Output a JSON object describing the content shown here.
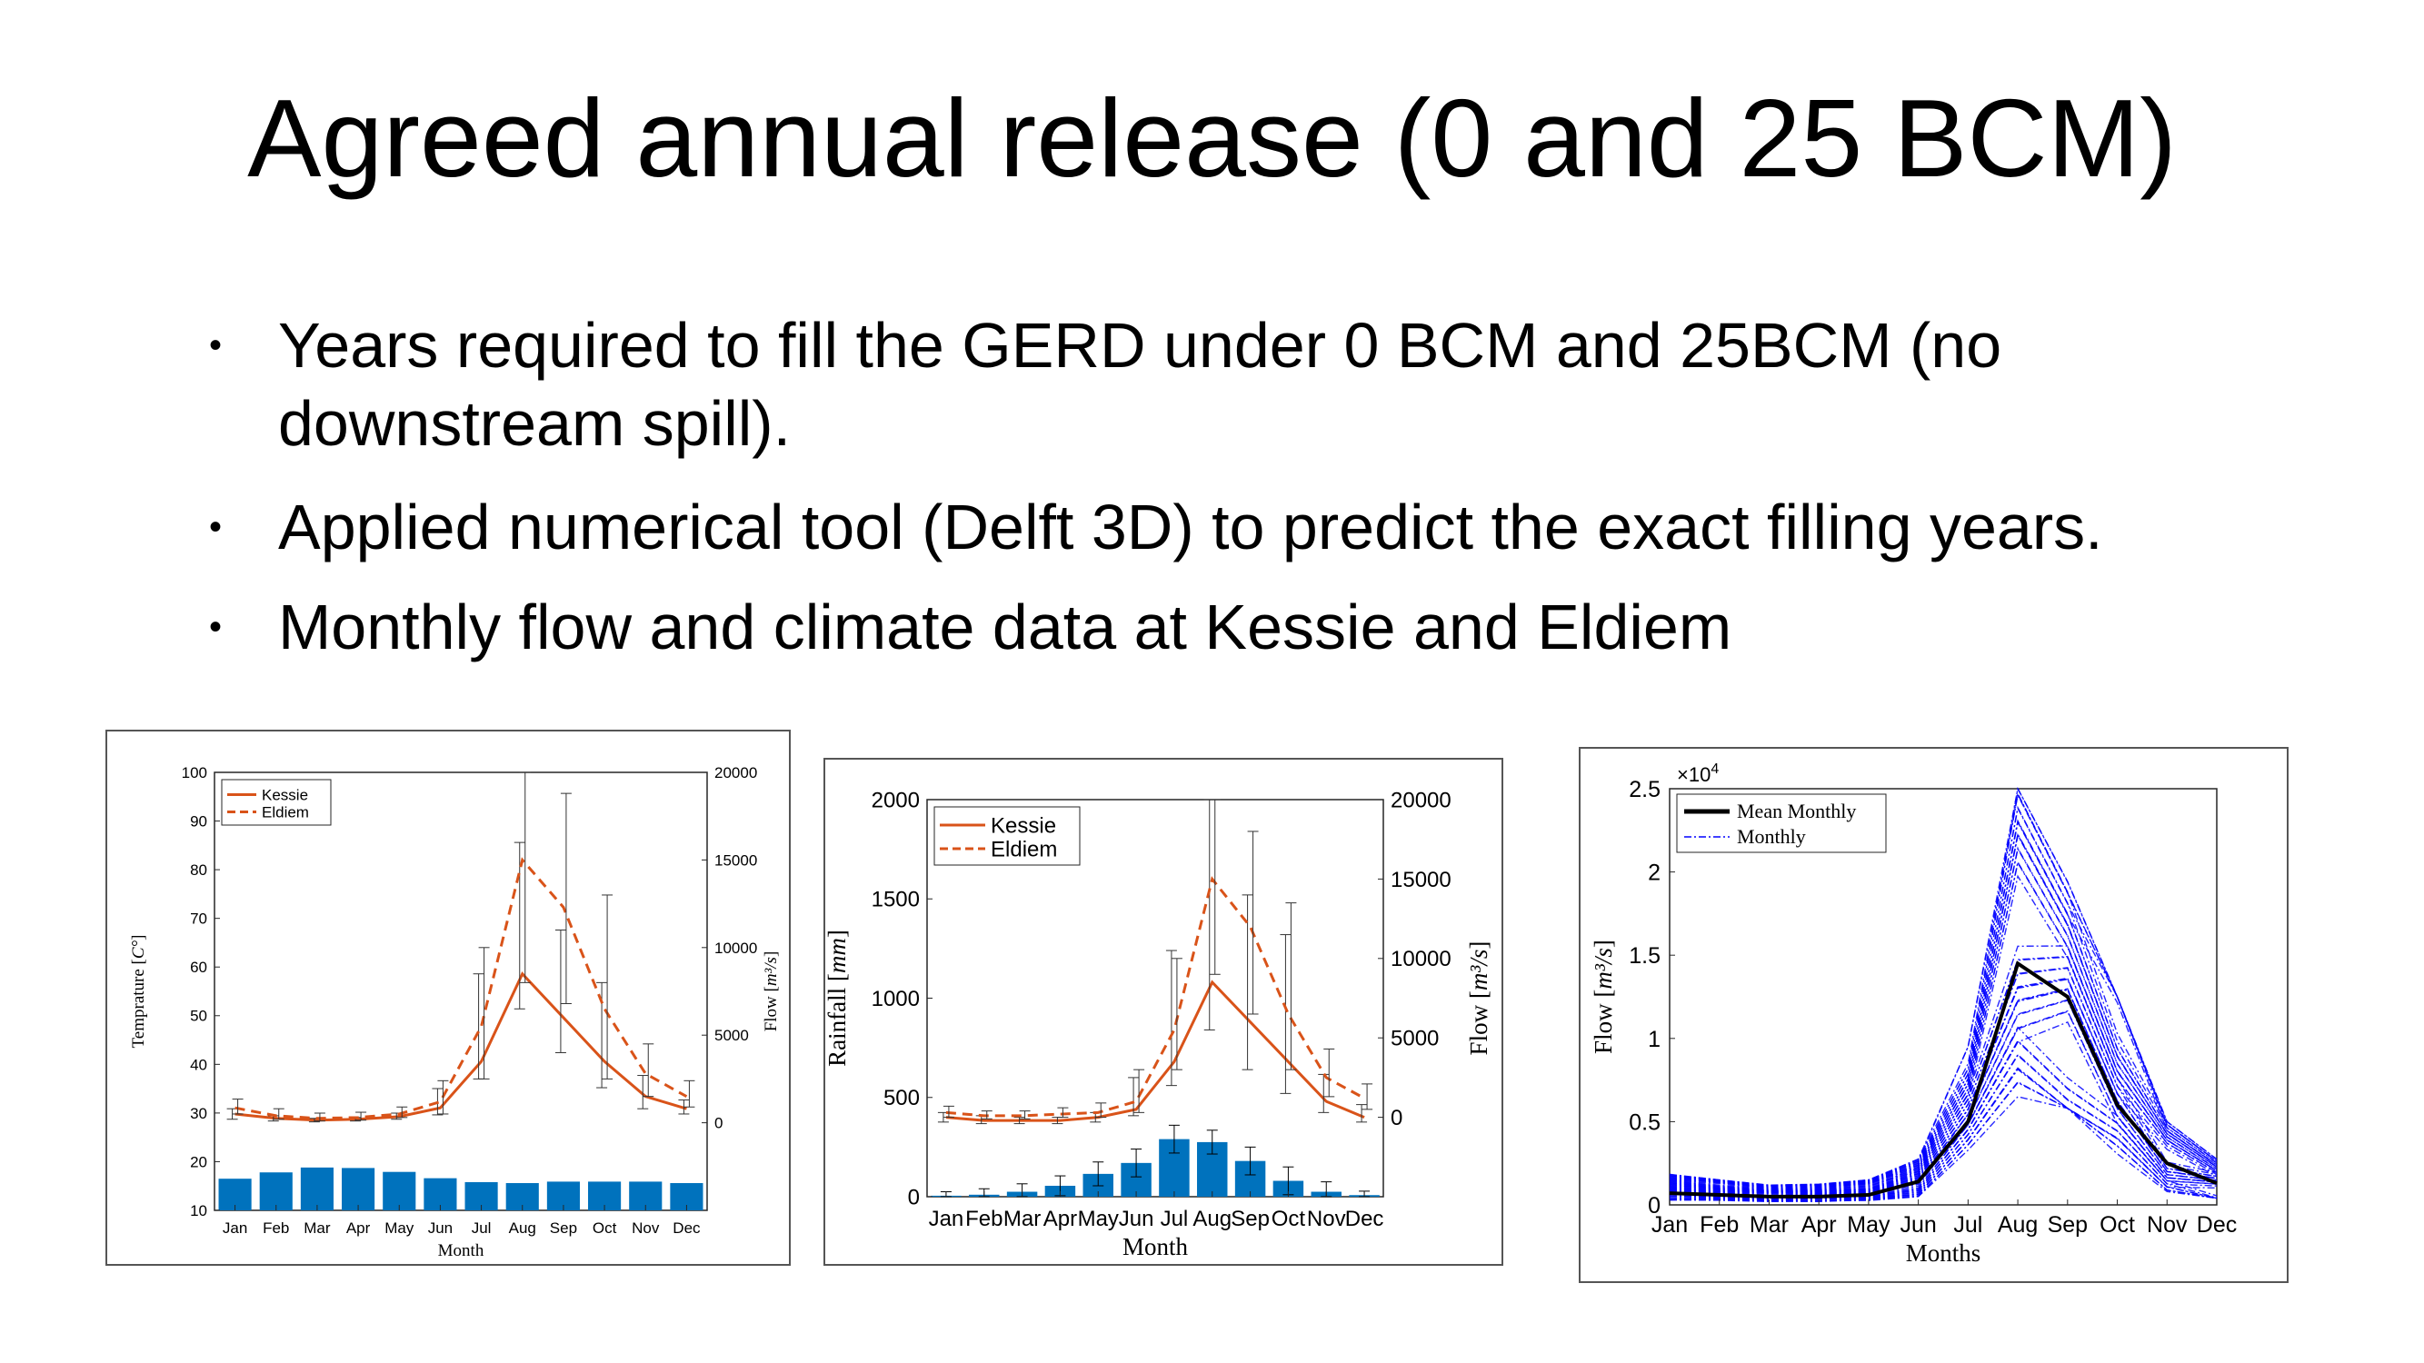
{
  "slide": {
    "title": "Agreed annual release (0 and 25 BCM)",
    "bullets": [
      {
        "lines": [
          "Years required to fill the GERD under 0 BCM and 25BCM (no",
          "downstream spill)."
        ]
      },
      {
        "lines": [
          "Applied numerical tool (Delft 3D) to predict the exact filling years."
        ]
      },
      {
        "lines": [
          "Monthly flow and climate data at Kessie and Eldiem"
        ]
      }
    ],
    "bullet_marker": "•"
  },
  "colors": {
    "kessie": "#D95319",
    "eldiem": "#D95319",
    "bars": "#0072BD",
    "monthly": "#0000FF",
    "mean": "#000000"
  },
  "chart_data": [
    {
      "type": "bar",
      "categories": [
        "Jan",
        "Feb",
        "Mar",
        "Apr",
        "May",
        "Jun",
        "Jul",
        "Aug",
        "Sep",
        "Oct",
        "Nov",
        "Dec"
      ],
      "xlabel": "Month",
      "ylabel": "Temprature [C°]",
      "ylim": [
        10,
        100
      ],
      "yticks": [
        10,
        20,
        30,
        40,
        50,
        60,
        70,
        80,
        90,
        100
      ],
      "y2label": "Flow [m³/s]",
      "y2lim": [
        -5000,
        20000
      ],
      "y2ticks": [
        0,
        5000,
        10000,
        15000,
        20000
      ],
      "bars": {
        "axis": "left",
        "values": [
          16.5,
          17.8,
          18.8,
          18.7,
          17.9,
          16.6,
          15.8,
          15.6,
          15.9,
          15.9,
          15.9,
          15.6
        ]
      },
      "series": [
        {
          "name": "Kessie",
          "axis": "right",
          "style": "solid",
          "values": [
            500,
            250,
            150,
            200,
            350,
            850,
            3500,
            8500,
            6000,
            3500,
            1500,
            800
          ],
          "err_lo": [
            300,
            150,
            100,
            100,
            150,
            400,
            1000,
            2000,
            2000,
            1500,
            700,
            300
          ],
          "err_hi": [
            300,
            150,
            100,
            100,
            200,
            1100,
            5000,
            7500,
            5000,
            4500,
            1200,
            500
          ]
        },
        {
          "name": "Eldiem",
          "axis": "right",
          "style": "dashed",
          "values": [
            850,
            400,
            250,
            300,
            500,
            1200,
            5500,
            15000,
            12300,
            6500,
            2800,
            1500
          ],
          "err_lo": [
            350,
            200,
            150,
            150,
            200,
            700,
            3000,
            7000,
            5500,
            4000,
            1300,
            600
          ],
          "err_hi": [
            500,
            400,
            300,
            300,
            400,
            1200,
            4500,
            5000,
            6500,
            6500,
            1700,
            900
          ]
        }
      ],
      "legend": {
        "position": "top-left",
        "entries": [
          "Kessie",
          "Eldiem"
        ]
      }
    },
    {
      "type": "bar",
      "categories": [
        "Jan",
        "Feb",
        "Mar",
        "Apr",
        "May",
        "Jun",
        "Jul",
        "Aug",
        "Sep",
        "Oct",
        "Nov",
        "Dec"
      ],
      "xlabel": "Month",
      "ylabel": "Rainfall [mm]",
      "ylim": [
        0,
        2000
      ],
      "yticks": [
        0,
        500,
        1000,
        1500,
        2000
      ],
      "y2label": "Flow [m³/s]",
      "y2lim": [
        -5000,
        20000
      ],
      "y2ticks": [
        0,
        5000,
        10000,
        15000,
        20000
      ],
      "bars": {
        "axis": "left",
        "values": [
          5,
          10,
          25,
          55,
          115,
          170,
          290,
          275,
          180,
          80,
          25,
          8
        ],
        "err": [
          20,
          30,
          40,
          50,
          60,
          70,
          70,
          60,
          70,
          70,
          50,
          20
        ]
      },
      "series": [
        {
          "name": "Kessie",
          "axis": "right",
          "style": "solid",
          "values": [
            0,
            -200,
            -200,
            -200,
            0,
            500,
            3500,
            8500,
            6000,
            3500,
            1000,
            0
          ],
          "err_lo": [
            300,
            200,
            200,
            200,
            300,
            400,
            1500,
            3000,
            3000,
            2000,
            700,
            300
          ],
          "err_hi": [
            300,
            300,
            200,
            200,
            300,
            2000,
            7000,
            11500,
            8000,
            8000,
            1700,
            800
          ]
        },
        {
          "name": "Eldiem",
          "axis": "right",
          "style": "dashed",
          "values": [
            300,
            100,
            100,
            200,
            300,
            1000,
            5500,
            15000,
            12000,
            6500,
            2500,
            1200
          ],
          "err_lo": [
            300,
            200,
            200,
            200,
            300,
            700,
            2500,
            6000,
            5500,
            3500,
            1200,
            700
          ],
          "err_hi": [
            400,
            300,
            300,
            400,
            600,
            2000,
            4500,
            5000,
            6000,
            7000,
            1800,
            900
          ]
        }
      ],
      "legend": {
        "position": "top-left",
        "entries": [
          "Kessie",
          "Eldiem"
        ]
      }
    },
    {
      "type": "line",
      "categories": [
        "Jan",
        "Feb",
        "Mar",
        "Apr",
        "May",
        "Jun",
        "Jul",
        "Aug",
        "Sep",
        "Oct",
        "Nov",
        "Dec"
      ],
      "xlabel": "Months",
      "ylabel": "Flow [m³/s]",
      "ylim": [
        0,
        25000
      ],
      "yticks": [
        0,
        0.5,
        1,
        1.5,
        2,
        2.5
      ],
      "yexponent_label": "×10",
      "yexponent_power": "4",
      "series": [
        {
          "name": "Mean Monthly",
          "style": "solid-thick",
          "values": [
            700,
            600,
            500,
            500,
            600,
            1400,
            5000,
            14500,
            12500,
            6000,
            2500,
            1300
          ]
        },
        {
          "name": "Monthly",
          "style": "dashdot",
          "envelope": true,
          "min": [
            300,
            250,
            200,
            200,
            250,
            500,
            2600,
            6500,
            5800,
            2300,
            800,
            400
          ],
          "max": [
            1900,
            1500,
            1200,
            1300,
            1500,
            2800,
            9500,
            25000,
            20500,
            12500,
            5000,
            3000
          ]
        }
      ],
      "legend": {
        "position": "top-left",
        "entries": [
          "Mean Monthly",
          "Monthly"
        ]
      }
    }
  ]
}
